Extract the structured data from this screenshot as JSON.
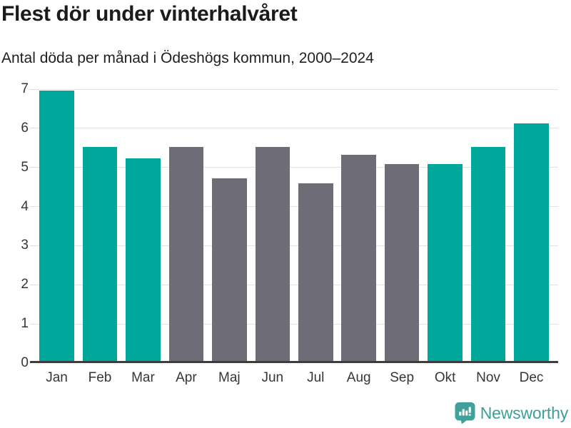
{
  "header": {
    "title": "Flest dör under vinterhalvåret",
    "subtitle": "Antal döda per månad i Ödeshögs kommun, 2000–2024"
  },
  "chart_data": {
    "type": "bar",
    "title": "Flest dör under vinterhalvåret",
    "subtitle": "Antal döda per månad i Ödeshögs kommun, 2000–2024",
    "categories": [
      "Jan",
      "Feb",
      "Mar",
      "Apr",
      "Maj",
      "Jun",
      "Jul",
      "Aug",
      "Sep",
      "Okt",
      "Nov",
      "Dec"
    ],
    "values": [
      6.97,
      5.52,
      5.24,
      5.52,
      4.72,
      5.52,
      4.6,
      5.32,
      5.08,
      5.08,
      5.52,
      6.13
    ],
    "highlighted": [
      true,
      true,
      true,
      false,
      false,
      false,
      false,
      false,
      false,
      true,
      true,
      true
    ],
    "xlabel": "",
    "ylabel": "",
    "ylim": [
      0,
      7
    ],
    "yticks": [
      0,
      1,
      2,
      3,
      4,
      5,
      6,
      7
    ],
    "grid": true,
    "legend": "none",
    "colors": {
      "highlight": "#00a79b",
      "default": "#6e6c76",
      "gridline": "#e3e3e3",
      "axis": "#3d3d3d",
      "tick_text": "#363636"
    }
  },
  "footer": {
    "brand": "Newsworthy",
    "logo_icon": "newsworthy-bubble-chart-icon",
    "brand_color": "#3f9e99",
    "badge_color": "#41a09a"
  }
}
